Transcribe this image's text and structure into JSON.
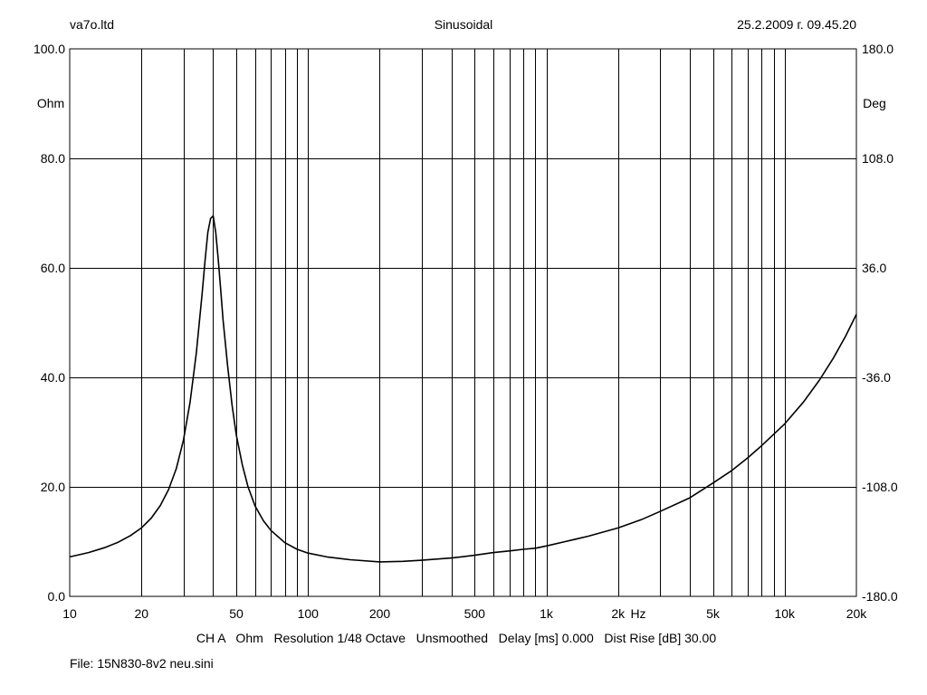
{
  "header": {
    "company": "va7o.ltd",
    "mode": "Sinusoidal",
    "timestamp": "25.2.2009 г. 09.45.20"
  },
  "footer": {
    "channel_info": "CH A   Ohm   Resolution 1/48 Octave   Unsmoothed   Delay [ms] 0.000   Dist Rise [dB] 30.00",
    "file": "File: 15N830-8v2 neu.sini"
  },
  "colors": {
    "curve": "#000000",
    "grid": "#000000",
    "background": "#ffffff"
  },
  "chart_data": {
    "type": "line",
    "x_scale": "log",
    "xlim": [
      10,
      20000
    ],
    "ylim": [
      0,
      100
    ],
    "y2lim": [
      -180,
      180
    ],
    "ylabel": "Ohm",
    "y2label": "Deg",
    "xunit": "Hz",
    "grid": true,
    "x_ticks": [
      {
        "value": 10,
        "label": "10"
      },
      {
        "value": 20,
        "label": "20"
      },
      {
        "value": 50,
        "label": "50"
      },
      {
        "value": 100,
        "label": "100"
      },
      {
        "value": 200,
        "label": "200"
      },
      {
        "value": 500,
        "label": "500"
      },
      {
        "value": 1000,
        "label": "1k"
      },
      {
        "value": 2000,
        "label": "2k"
      },
      {
        "value": 5000,
        "label": "5k"
      },
      {
        "value": 10000,
        "label": "10k"
      },
      {
        "value": 20000,
        "label": "20k"
      }
    ],
    "y_ticks": [
      {
        "value": 0,
        "label": "0.0"
      },
      {
        "value": 20,
        "label": "20.0"
      },
      {
        "value": 40,
        "label": "40.0"
      },
      {
        "value": 60,
        "label": "60.0"
      },
      {
        "value": 80,
        "label": "80.0"
      },
      {
        "value": 100,
        "label": "100.0"
      }
    ],
    "y2_ticks": [
      {
        "value": -180,
        "label": "-180.0"
      },
      {
        "value": -108,
        "label": "-108.0"
      },
      {
        "value": -36,
        "label": "-36.0"
      },
      {
        "value": 36,
        "label": "36.0"
      },
      {
        "value": 108,
        "label": "108.0"
      },
      {
        "value": 180,
        "label": "180.0"
      }
    ],
    "series": [
      {
        "x": [
          10,
          12,
          14,
          16,
          18,
          20,
          22,
          24,
          26,
          28,
          30,
          32,
          34,
          36,
          37,
          38,
          39,
          40,
          41,
          42,
          43,
          44,
          46,
          48,
          50,
          53,
          56,
          60,
          65,
          70,
          80,
          90,
          100,
          120,
          150,
          200,
          250,
          300,
          400,
          500,
          600,
          700,
          800,
          900,
          1000,
          1200,
          1500,
          2000,
          2500,
          3000,
          4000,
          5000,
          6000,
          7000,
          8000,
          10000,
          12000,
          14000,
          16000,
          18000,
          20000
        ],
        "y": [
          7.2,
          8.0,
          8.9,
          9.9,
          11.1,
          12.5,
          14.3,
          16.6,
          19.5,
          23.3,
          28.5,
          35.5,
          44.5,
          55.5,
          61.5,
          66.5,
          69.0,
          69.5,
          66.5,
          61.5,
          56.0,
          50.5,
          42.0,
          35.0,
          29.5,
          24.0,
          20.0,
          16.5,
          13.8,
          12.0,
          9.8,
          8.6,
          7.9,
          7.2,
          6.7,
          6.3,
          6.4,
          6.6,
          7.0,
          7.5,
          8.0,
          8.3,
          8.6,
          8.8,
          9.2,
          10.0,
          11.0,
          12.5,
          14.0,
          15.5,
          18.0,
          20.7,
          23.0,
          25.3,
          27.5,
          31.5,
          35.5,
          39.5,
          43.5,
          47.5,
          51.5
        ]
      }
    ]
  }
}
